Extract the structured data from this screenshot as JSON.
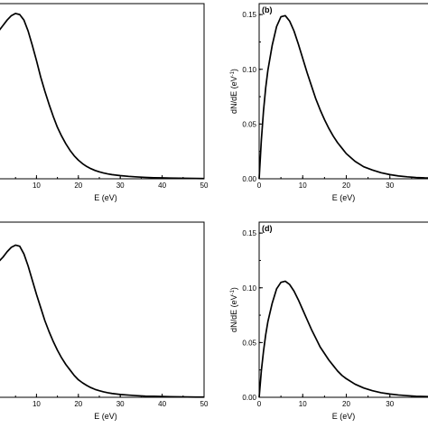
{
  "chart_data": [
    {
      "id": "a",
      "type": "line",
      "panel_label": "",
      "xlabel": "E (eV)",
      "ylabel": "",
      "xlim": [
        0,
        50
      ],
      "ylim": [
        0,
        0.16
      ],
      "x_ticks": [
        {
          "value": 10,
          "label": "10"
        },
        {
          "value": 20,
          "label": "20"
        },
        {
          "value": 30,
          "label": "30"
        },
        {
          "value": 40,
          "label": "40"
        },
        {
          "value": 50,
          "label": "50"
        }
      ],
      "y_ticks": [],
      "x": [
        0,
        0.5,
        1,
        2,
        3,
        4,
        5,
        6,
        7,
        8,
        9,
        10,
        11,
        12,
        13,
        14,
        15,
        16,
        17,
        18,
        19,
        20,
        21,
        22,
        23,
        24,
        25,
        26,
        27,
        28,
        30,
        32,
        34,
        36,
        38,
        40,
        42,
        44,
        46,
        48,
        50
      ],
      "y": [
        0.133,
        0.134,
        0.135,
        0.14,
        0.145,
        0.149,
        0.151,
        0.15,
        0.145,
        0.135,
        0.122,
        0.108,
        0.093,
        0.08,
        0.068,
        0.057,
        0.047,
        0.039,
        0.032,
        0.026,
        0.021,
        0.017,
        0.0138,
        0.0112,
        0.0092,
        0.0076,
        0.0063,
        0.0053,
        0.0045,
        0.0038,
        0.0029,
        0.0022,
        0.0017,
        0.0013,
        0.001,
        0.0008,
        0.0006,
        0.0005,
        0.0004,
        0.0003,
        0.0002
      ]
    },
    {
      "id": "b",
      "type": "line",
      "panel_label": "(b)",
      "xlabel": "E (eV)",
      "ylabel": "dN/dE (eV",
      "ylabel_sup": "-1",
      "ylabel_end": ")",
      "xlim": [
        0,
        40
      ],
      "ylim": [
        0,
        0.16
      ],
      "x_ticks": [
        {
          "value": 0,
          "label": "0"
        },
        {
          "value": 10,
          "label": "10"
        },
        {
          "value": 20,
          "label": "20"
        },
        {
          "value": 30,
          "label": "30"
        }
      ],
      "y_ticks": [
        {
          "value": 0,
          "label": "0.00"
        },
        {
          "value": 0.05,
          "label": "0.05"
        },
        {
          "value": 0.1,
          "label": "0.10"
        },
        {
          "value": 0.15,
          "label": "0.15"
        }
      ],
      "x": [
        0,
        0.5,
        1,
        1.5,
        2,
        3,
        4,
        5,
        6,
        7,
        8,
        9,
        10,
        11,
        12,
        13,
        14,
        15,
        16,
        17,
        18,
        19,
        20,
        22,
        24,
        26,
        28,
        30,
        32,
        34,
        36,
        38,
        40
      ],
      "y": [
        0.0,
        0.035,
        0.062,
        0.083,
        0.099,
        0.122,
        0.139,
        0.148,
        0.149,
        0.144,
        0.135,
        0.123,
        0.11,
        0.097,
        0.085,
        0.073,
        0.063,
        0.054,
        0.046,
        0.039,
        0.033,
        0.028,
        0.023,
        0.016,
        0.011,
        0.008,
        0.0055,
        0.0038,
        0.0026,
        0.0018,
        0.0012,
        0.0008,
        0.0006
      ]
    },
    {
      "id": "c",
      "type": "line",
      "panel_label": "",
      "xlabel": "E (eV)",
      "ylabel": "",
      "xlim": [
        0,
        50
      ],
      "ylim": [
        0,
        0.16
      ],
      "x_ticks": [
        {
          "value": 10,
          "label": "10"
        },
        {
          "value": 20,
          "label": "20"
        },
        {
          "value": 30,
          "label": "30"
        },
        {
          "value": 40,
          "label": "40"
        },
        {
          "value": 50,
          "label": "50"
        }
      ],
      "y_ticks": [],
      "x": [
        0,
        0.5,
        1,
        2,
        3,
        4,
        5,
        6,
        7,
        8,
        9,
        10,
        11,
        12,
        13,
        14,
        15,
        16,
        17,
        18,
        19,
        20,
        21,
        22,
        23,
        24,
        25,
        26,
        27,
        28,
        30,
        32,
        34,
        36,
        38,
        40,
        42,
        44,
        46,
        48,
        50
      ],
      "y": [
        0.12,
        0.122,
        0.124,
        0.128,
        0.133,
        0.137,
        0.139,
        0.138,
        0.131,
        0.12,
        0.107,
        0.094,
        0.082,
        0.07,
        0.06,
        0.051,
        0.043,
        0.036,
        0.03,
        0.025,
        0.02,
        0.016,
        0.0132,
        0.0108,
        0.0088,
        0.0072,
        0.006,
        0.005,
        0.0042,
        0.0035,
        0.0026,
        0.002,
        0.0015,
        0.0011,
        0.0009,
        0.0007,
        0.0005,
        0.0004,
        0.0003,
        0.0002,
        0.0002
      ]
    },
    {
      "id": "d",
      "type": "line",
      "panel_label": "(d)",
      "xlabel": "E (eV)",
      "ylabel": "dN/dE (eV",
      "ylabel_sup": "-1",
      "ylabel_end": ")",
      "xlim": [
        0,
        40
      ],
      "ylim": [
        0,
        0.16
      ],
      "x_ticks": [
        {
          "value": 0,
          "label": "0"
        },
        {
          "value": 10,
          "label": "10"
        },
        {
          "value": 20,
          "label": "20"
        },
        {
          "value": 30,
          "label": "30"
        }
      ],
      "y_ticks": [
        {
          "value": 0,
          "label": "0.00"
        },
        {
          "value": 0.05,
          "label": "0.05"
        },
        {
          "value": 0.1,
          "label": "0.10"
        },
        {
          "value": 0.15,
          "label": "0.15"
        }
      ],
      "x": [
        0,
        0.5,
        1,
        1.5,
        2,
        3,
        4,
        5,
        6,
        7,
        8,
        9,
        10,
        11,
        12,
        13,
        14,
        15,
        16,
        17,
        18,
        19,
        20,
        22,
        24,
        26,
        28,
        30,
        32,
        34,
        36,
        38,
        40
      ],
      "y": [
        0.0,
        0.024,
        0.042,
        0.057,
        0.069,
        0.086,
        0.099,
        0.105,
        0.106,
        0.103,
        0.097,
        0.089,
        0.08,
        0.071,
        0.062,
        0.054,
        0.046,
        0.04,
        0.034,
        0.029,
        0.024,
        0.02,
        0.017,
        0.012,
        0.0085,
        0.006,
        0.0042,
        0.003,
        0.0021,
        0.0015,
        0.001,
        0.0007,
        0.0005
      ]
    }
  ]
}
